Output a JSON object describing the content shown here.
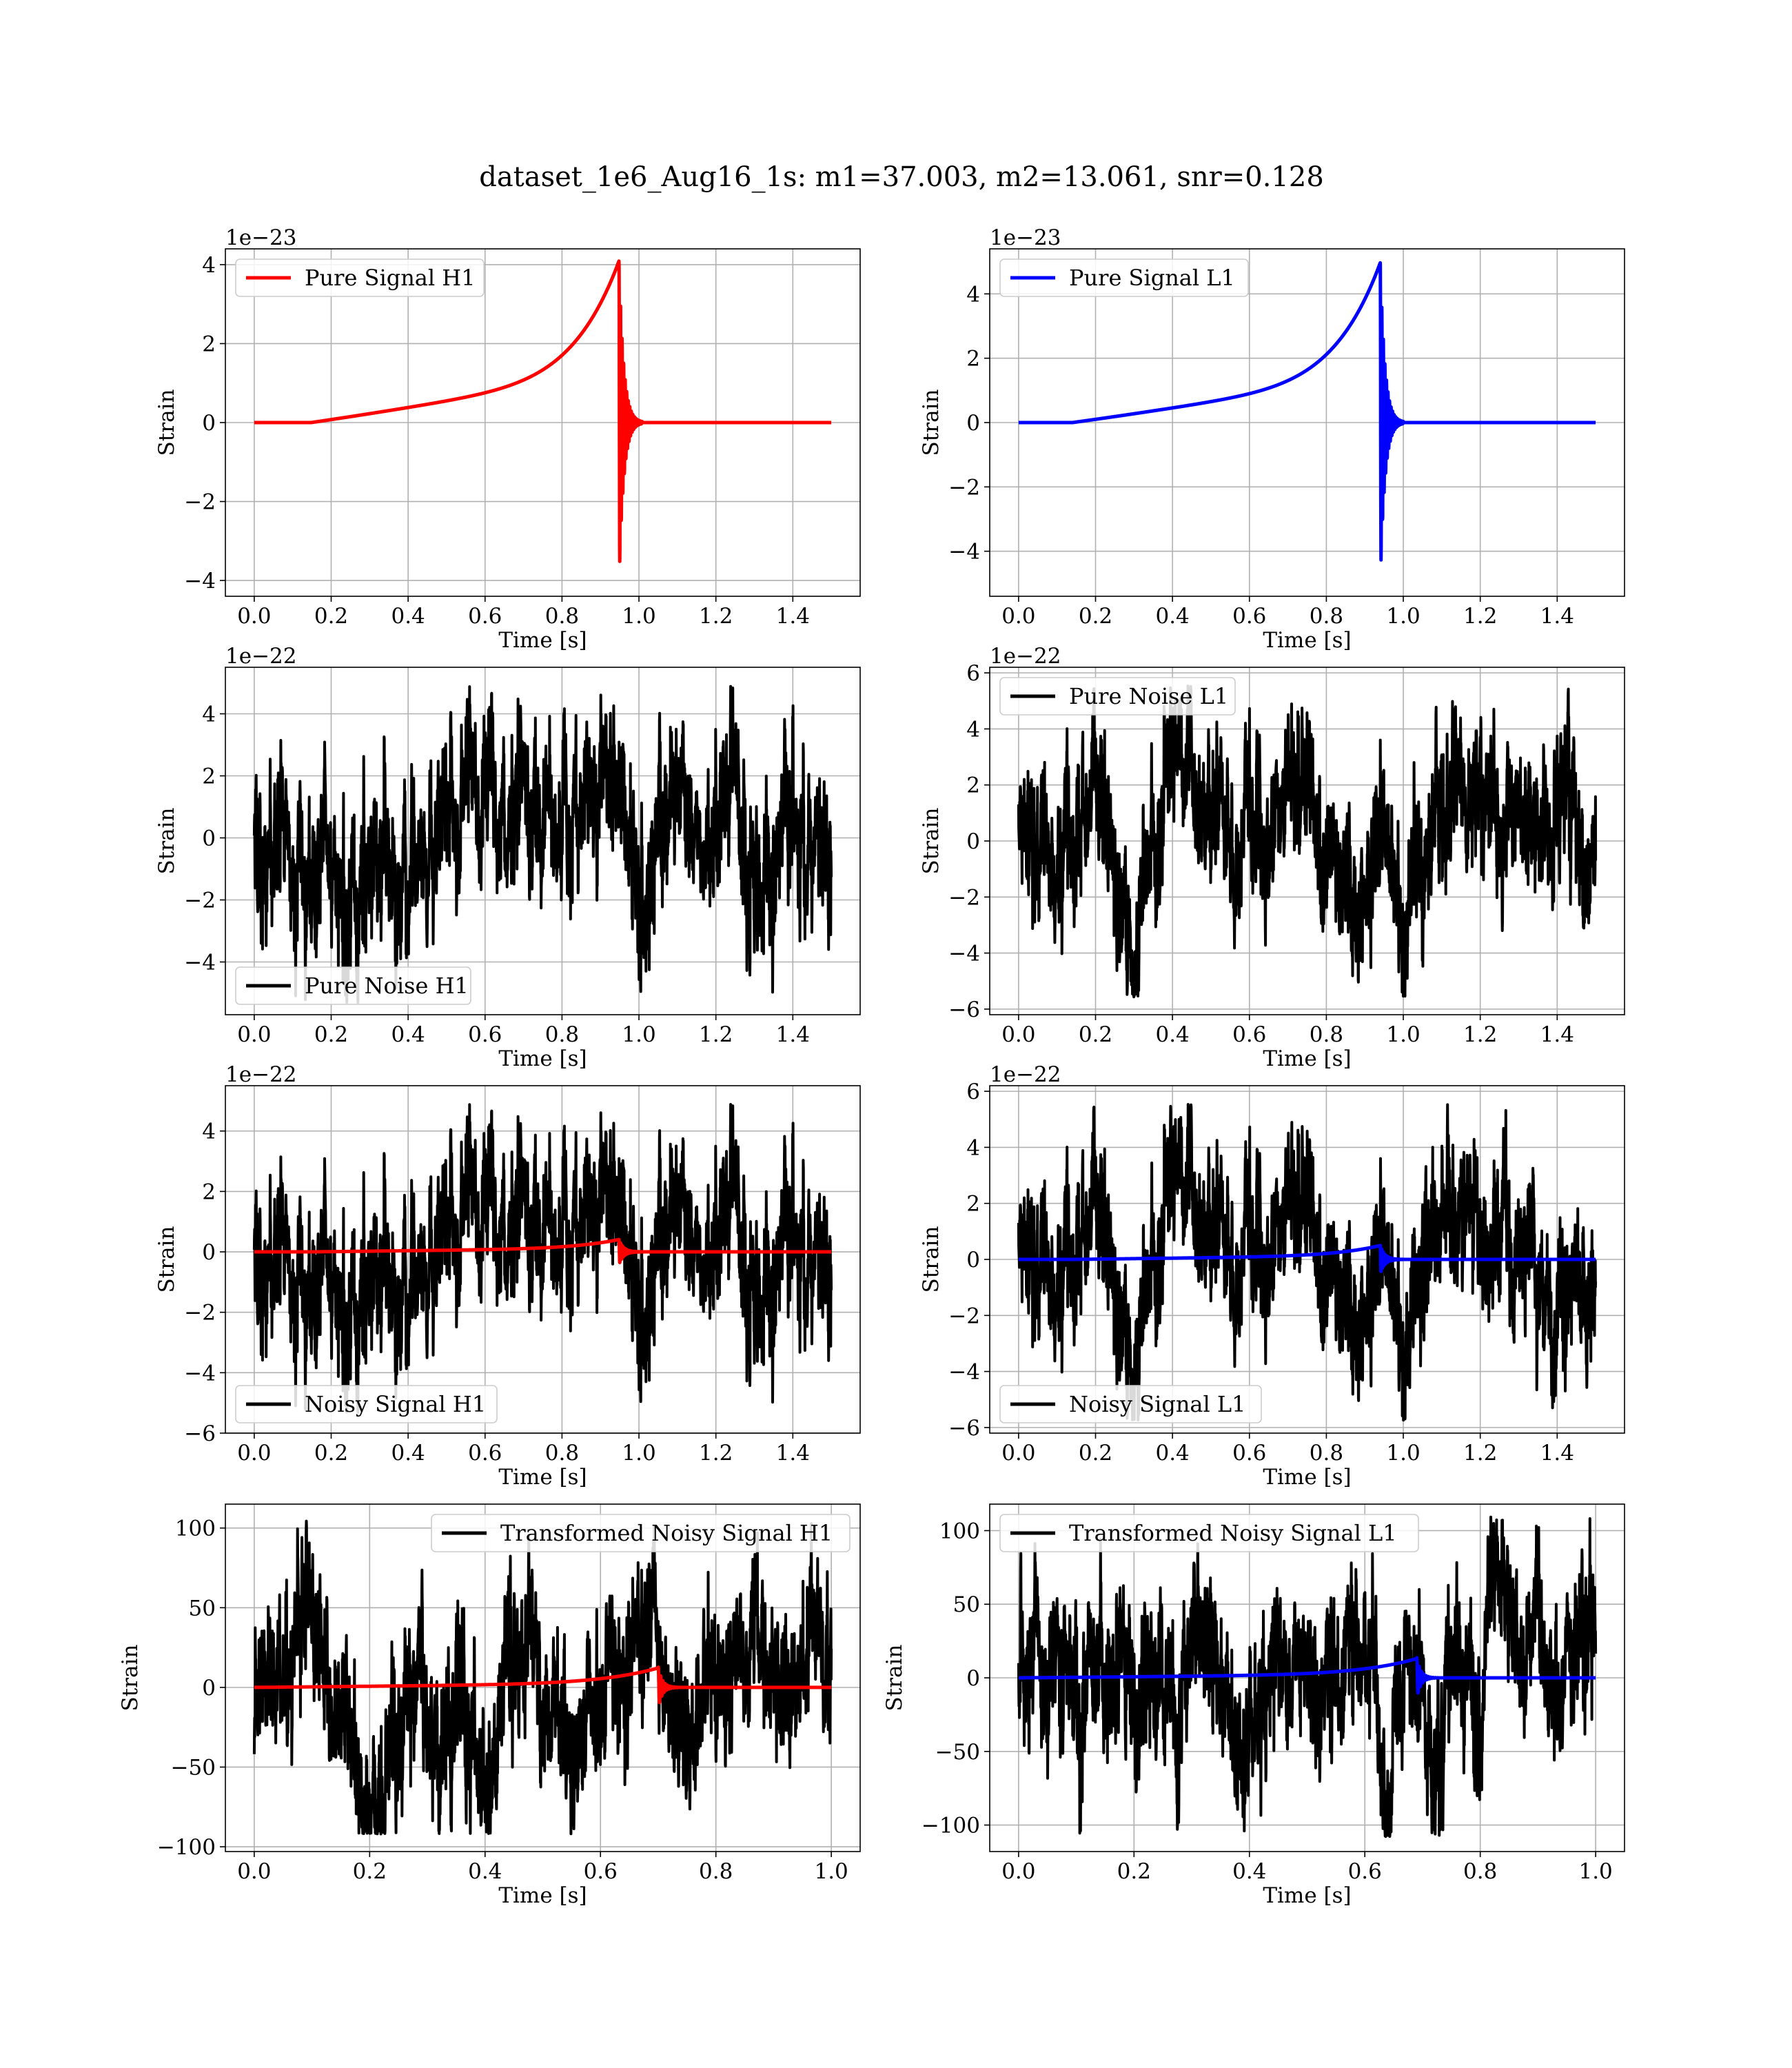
{
  "figure": {
    "title": "dataset_1e6_Aug16_1s: m1=37.003, m2=13.061, snr=0.128"
  },
  "colors": {
    "h1_signal": "#ff0000",
    "l1_signal": "#0000ff",
    "noise": "#000000",
    "grid": "#b0b0b0"
  },
  "chart_data": [
    {
      "id": "pure-signal-h1",
      "type": "line",
      "xlabel": "Time [s]",
      "ylabel": "Strain",
      "scale_label": "1e−23",
      "xlim": [
        -0.075,
        1.575
      ],
      "ylim": [
        -4.4,
        4.4
      ],
      "xticks": [
        0.0,
        0.2,
        0.4,
        0.6,
        0.8,
        1.0,
        1.2,
        1.4
      ],
      "xtick_labels": [
        "0.0",
        "0.2",
        "0.4",
        "0.6",
        "0.8",
        "1.0",
        "1.2",
        "1.4"
      ],
      "yticks": [
        -4,
        -2,
        0,
        2,
        4
      ],
      "ytick_labels": [
        "−4",
        "−2",
        "0",
        "2",
        "4"
      ],
      "grid": true,
      "legend_position": "upper-left",
      "series": [
        {
          "name": "Pure Signal H1",
          "kind": "chirp",
          "color": "#ff0000",
          "t_start": 0.148,
          "t_merge": 0.948,
          "t_end": 1.5,
          "amp_start": 1.3,
          "amp_peak": 4.2,
          "ringdown": 0.02
        }
      ]
    },
    {
      "id": "pure-signal-l1",
      "type": "line",
      "xlabel": "Time [s]",
      "ylabel": "Strain",
      "scale_label": "1e−23",
      "xlim": [
        -0.075,
        1.575
      ],
      "ylim": [
        -5.4,
        5.4
      ],
      "xticks": [
        0.0,
        0.2,
        0.4,
        0.6,
        0.8,
        1.0,
        1.2,
        1.4
      ],
      "xtick_labels": [
        "0.0",
        "0.2",
        "0.4",
        "0.6",
        "0.8",
        "1.0",
        "1.2",
        "1.4"
      ],
      "yticks": [
        -4,
        -2,
        0,
        2,
        4
      ],
      "ytick_labels": [
        "−4",
        "−2",
        "0",
        "2",
        "4"
      ],
      "grid": true,
      "legend_position": "upper-left",
      "series": [
        {
          "name": "Pure Signal L1",
          "kind": "chirp",
          "color": "#0000ff",
          "t_start": 0.14,
          "t_merge": 0.94,
          "t_end": 1.5,
          "amp_start": 1.5,
          "amp_peak": 5.1,
          "ringdown": 0.02
        }
      ]
    },
    {
      "id": "pure-noise-h1",
      "type": "line",
      "xlabel": "Time [s]",
      "ylabel": "Strain",
      "scale_label": "1e−22",
      "xlim": [
        -0.075,
        1.575
      ],
      "ylim": [
        -5.7,
        5.5
      ],
      "xticks": [
        0.0,
        0.2,
        0.4,
        0.6,
        0.8,
        1.0,
        1.2,
        1.4
      ],
      "xtick_labels": [
        "0.0",
        "0.2",
        "0.4",
        "0.6",
        "0.8",
        "1.0",
        "1.2",
        "1.4"
      ],
      "yticks": [
        -4,
        -2,
        0,
        2,
        4
      ],
      "ytick_labels": [
        "−4",
        "−2",
        "0",
        "2",
        "4"
      ],
      "grid": true,
      "legend_position": "lower-left",
      "series": [
        {
          "name": "Pure Noise H1",
          "kind": "noise",
          "color": "#000000",
          "t_start": 0.0,
          "t_end": 1.5,
          "sigma": 1.4,
          "max": 5.0,
          "min": -5.4,
          "seed": 11
        }
      ]
    },
    {
      "id": "pure-noise-l1",
      "type": "line",
      "xlabel": "Time [s]",
      "ylabel": "Strain",
      "scale_label": "1e−22",
      "xlim": [
        -0.075,
        1.575
      ],
      "ylim": [
        -6.2,
        6.2
      ],
      "xticks": [
        0.0,
        0.2,
        0.4,
        0.6,
        0.8,
        1.0,
        1.2,
        1.4
      ],
      "xtick_labels": [
        "0.0",
        "0.2",
        "0.4",
        "0.6",
        "0.8",
        "1.0",
        "1.2",
        "1.4"
      ],
      "yticks": [
        -6,
        -4,
        -2,
        0,
        2,
        4,
        6
      ],
      "ytick_labels": [
        "−6",
        "−4",
        "−2",
        "0",
        "2",
        "4",
        "6"
      ],
      "grid": true,
      "legend_position": "upper-left",
      "series": [
        {
          "name": "Pure Noise L1",
          "kind": "noise",
          "color": "#000000",
          "t_start": 0.0,
          "t_end": 1.5,
          "sigma": 1.5,
          "max": 5.6,
          "min": -5.6,
          "seed": 29
        }
      ]
    },
    {
      "id": "noisy-signal-h1",
      "type": "line",
      "xlabel": "Time [s]",
      "ylabel": "Strain",
      "scale_label": "1e−22",
      "xlim": [
        -0.075,
        1.575
      ],
      "ylim": [
        -6.0,
        5.5
      ],
      "xticks": [
        0.0,
        0.2,
        0.4,
        0.6,
        0.8,
        1.0,
        1.2,
        1.4
      ],
      "xtick_labels": [
        "0.0",
        "0.2",
        "0.4",
        "0.6",
        "0.8",
        "1.0",
        "1.2",
        "1.4"
      ],
      "yticks": [
        -6,
        -4,
        -2,
        0,
        2,
        4
      ],
      "ytick_labels": [
        "−6",
        "−4",
        "−2",
        "0",
        "2",
        "4"
      ],
      "grid": true,
      "legend_position": "lower-left",
      "series": [
        {
          "name": "Noisy Signal H1",
          "kind": "noise",
          "color": "#000000",
          "t_start": 0.0,
          "t_end": 1.5,
          "sigma": 1.4,
          "max": 5.0,
          "min": -5.4,
          "seed": 11
        },
        {
          "kind": "chirp",
          "color": "#ff0000",
          "t_start": 0.148,
          "t_merge": 0.948,
          "t_end": 1.5,
          "amp_start": 0.13,
          "amp_peak": 0.42,
          "ringdown": 0.02
        }
      ]
    },
    {
      "id": "noisy-signal-l1",
      "type": "line",
      "xlabel": "Time [s]",
      "ylabel": "Strain",
      "scale_label": "1e−22",
      "xlim": [
        -0.075,
        1.575
      ],
      "ylim": [
        -6.2,
        6.2
      ],
      "xticks": [
        0.0,
        0.2,
        0.4,
        0.6,
        0.8,
        1.0,
        1.2,
        1.4
      ],
      "xtick_labels": [
        "0.0",
        "0.2",
        "0.4",
        "0.6",
        "0.8",
        "1.0",
        "1.2",
        "1.4"
      ],
      "yticks": [
        -6,
        -4,
        -2,
        0,
        2,
        4,
        6
      ],
      "ytick_labels": [
        "−6",
        "−4",
        "−2",
        "0",
        "2",
        "4",
        "6"
      ],
      "grid": true,
      "legend_position": "lower-left",
      "series": [
        {
          "name": "Noisy Signal L1",
          "kind": "noise",
          "color": "#000000",
          "t_start": 0.0,
          "t_end": 1.5,
          "sigma": 1.5,
          "max": 5.6,
          "min": -5.8,
          "seed": 29
        },
        {
          "kind": "chirp",
          "color": "#0000ff",
          "t_start": 0.14,
          "t_merge": 0.94,
          "t_end": 1.5,
          "amp_start": 0.15,
          "amp_peak": 0.51,
          "ringdown": 0.02
        }
      ]
    },
    {
      "id": "transformed-noisy-signal-h1",
      "type": "line",
      "xlabel": "Time [s]",
      "ylabel": "Strain",
      "scale_label": "",
      "xlim": [
        -0.05,
        1.05
      ],
      "ylim": [
        -103,
        115
      ],
      "xticks": [
        0.0,
        0.2,
        0.4,
        0.6,
        0.8,
        1.0
      ],
      "xtick_labels": [
        "0.0",
        "0.2",
        "0.4",
        "0.6",
        "0.8",
        "1.0"
      ],
      "yticks": [
        -100,
        -50,
        0,
        50,
        100
      ],
      "ytick_labels": [
        "−100",
        "−50",
        "0",
        "50",
        "100"
      ],
      "grid": true,
      "legend_position": "upper-right",
      "series": [
        {
          "name": "Transformed Noisy Signal H1",
          "kind": "noise",
          "color": "#000000",
          "t_start": 0.0,
          "t_end": 1.0,
          "sigma": 27,
          "max": 107,
          "min": -92,
          "seed": 47
        },
        {
          "kind": "chirp",
          "color": "#ff0000",
          "t_start": 0.0,
          "t_merge": 0.7,
          "t_end": 1.0,
          "amp_start": 3,
          "amp_peak": 13,
          "ringdown": 0.012
        }
      ]
    },
    {
      "id": "transformed-noisy-signal-l1",
      "type": "line",
      "xlabel": "Time [s]",
      "ylabel": "Strain",
      "scale_label": "",
      "xlim": [
        -0.05,
        1.05
      ],
      "ylim": [
        -118,
        118
      ],
      "xticks": [
        0.0,
        0.2,
        0.4,
        0.6,
        0.8,
        1.0
      ],
      "xtick_labels": [
        "0.0",
        "0.2",
        "0.4",
        "0.6",
        "0.8",
        "1.0"
      ],
      "yticks": [
        -100,
        -50,
        0,
        50,
        100
      ],
      "ytick_labels": [
        "−100",
        "−50",
        "0",
        "50",
        "100"
      ],
      "grid": true,
      "legend_position": "upper-left",
      "series": [
        {
          "name": "Transformed Noisy Signal L1",
          "kind": "noise",
          "color": "#000000",
          "t_start": 0.0,
          "t_end": 1.0,
          "sigma": 29,
          "max": 110,
          "min": -108,
          "seed": 83
        },
        {
          "kind": "chirp",
          "color": "#0000ff",
          "t_start": 0.0,
          "t_merge": 0.69,
          "t_end": 1.0,
          "amp_start": 3,
          "amp_peak": 14,
          "ringdown": 0.012
        }
      ]
    }
  ]
}
